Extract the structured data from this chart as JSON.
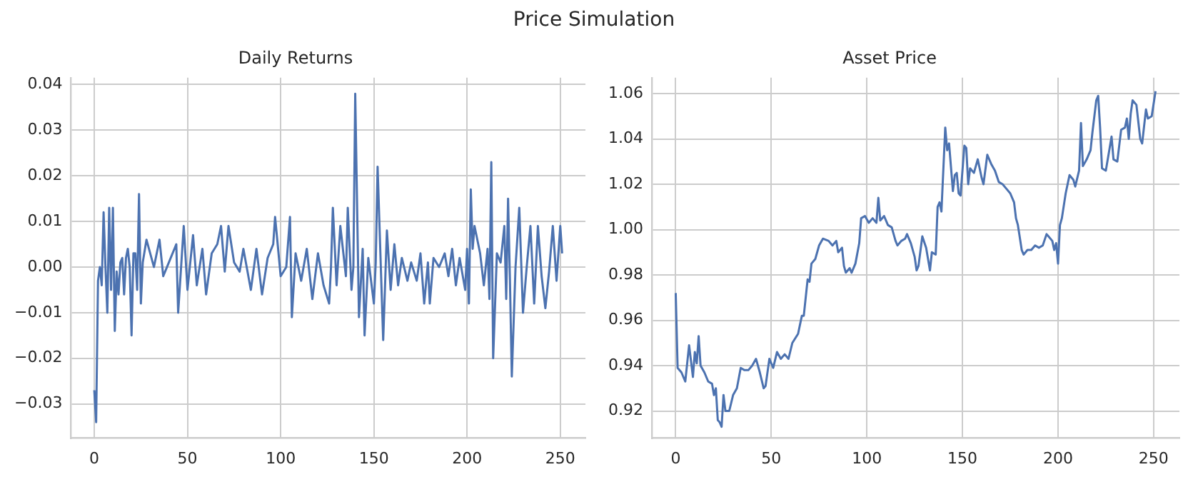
{
  "chart_data": [
    {
      "type": "line",
      "title": "Daily Returns",
      "annotations": [
        "Price Simulation"
      ],
      "color": "#4c72b0",
      "grid": true,
      "x": [
        0,
        1,
        2,
        3,
        4,
        5,
        6,
        7,
        8,
        9,
        10,
        11,
        12,
        13,
        14,
        15,
        16,
        17,
        18,
        19,
        20,
        21,
        22,
        23,
        24,
        25,
        26,
        28,
        32,
        35,
        37,
        40,
        44,
        45,
        48,
        50,
        53,
        55,
        58,
        60,
        63,
        66,
        68,
        70,
        72,
        75,
        78,
        80,
        84,
        87,
        90,
        93,
        96,
        97,
        100,
        103,
        105,
        106,
        108,
        111,
        114,
        117,
        120,
        123,
        126,
        127,
        128,
        130,
        132,
        135,
        136,
        138,
        139,
        140,
        142,
        144,
        145,
        147,
        150,
        151,
        152,
        155,
        157,
        159,
        161,
        163,
        165,
        168,
        170,
        173,
        175,
        177,
        179,
        180,
        182,
        185,
        188,
        190,
        192,
        194,
        196,
        199,
        200,
        201,
        202,
        203,
        204,
        207,
        209,
        211,
        212,
        213,
        214,
        216,
        218,
        220,
        221,
        222,
        223,
        224,
        226,
        228,
        230,
        232,
        234,
        236,
        238,
        240,
        242,
        244,
        246,
        248,
        250,
        251
      ],
      "values": [
        -0.027,
        -0.034,
        -0.003,
        0.0,
        -0.004,
        0.012,
        0.0,
        -0.01,
        0.013,
        -0.005,
        0.013,
        -0.014,
        -0.001,
        -0.006,
        0.001,
        0.002,
        -0.006,
        0.002,
        0.004,
        0.0,
        -0.015,
        0.003,
        0.003,
        -0.005,
        0.016,
        -0.008,
        0.001,
        0.006,
        0.0,
        0.006,
        -0.002,
        0.001,
        0.005,
        -0.01,
        0.009,
        -0.005,
        0.007,
        -0.004,
        0.004,
        -0.006,
        0.003,
        0.005,
        0.009,
        -0.001,
        0.009,
        0.001,
        -0.001,
        0.004,
        -0.005,
        0.004,
        -0.006,
        0.002,
        0.005,
        0.011,
        -0.002,
        0.0,
        0.011,
        -0.011,
        0.003,
        -0.003,
        0.004,
        -0.007,
        0.003,
        -0.004,
        -0.008,
        0.0,
        0.013,
        -0.004,
        0.009,
        -0.002,
        0.013,
        -0.005,
        0.0,
        0.038,
        -0.011,
        0.004,
        -0.015,
        0.002,
        -0.008,
        0.001,
        0.022,
        -0.016,
        0.008,
        -0.005,
        0.005,
        -0.004,
        0.002,
        -0.003,
        0.001,
        -0.003,
        0.003,
        -0.008,
        0.001,
        -0.008,
        0.002,
        0.0,
        0.003,
        -0.002,
        0.004,
        -0.004,
        0.002,
        -0.005,
        0.004,
        -0.008,
        0.017,
        0.004,
        0.009,
        0.003,
        -0.004,
        0.004,
        -0.007,
        0.023,
        -0.02,
        0.003,
        0.001,
        0.009,
        -0.007,
        0.015,
        -0.003,
        -0.024,
        0.0,
        0.013,
        -0.01,
        0.0,
        0.009,
        -0.008,
        0.009,
        -0.002,
        -0.009,
        -0.001,
        0.009,
        -0.003,
        0.009,
        0.003
      ],
      "xlim": [
        -12.5,
        263.5
      ],
      "xticks": [
        0,
        50,
        100,
        150,
        200,
        250
      ],
      "ylim": [
        -0.0375,
        0.0415
      ],
      "yticks": [
        {
          "value": -0.03,
          "label": "−0.03"
        },
        {
          "value": -0.02,
          "label": "−0.02"
        },
        {
          "value": -0.01,
          "label": "−0.01"
        },
        {
          "value": 0,
          "label": "0.00"
        },
        {
          "value": 0.01,
          "label": "0.01"
        },
        {
          "value": 0.02,
          "label": "0.02"
        },
        {
          "value": 0.03,
          "label": "0.03"
        },
        {
          "value": 0.04,
          "label": "0.04"
        }
      ]
    },
    {
      "type": "line",
      "title": "Asset Price",
      "color": "#4c72b0",
      "grid": true,
      "x": [
        0,
        1,
        3,
        5,
        7,
        8,
        9,
        10,
        11,
        12,
        13,
        15,
        17,
        19,
        20,
        21,
        22,
        23,
        24,
        25,
        26,
        28,
        30,
        32,
        34,
        36,
        38,
        40,
        42,
        44,
        46,
        47,
        49,
        51,
        53,
        55,
        57,
        59,
        61,
        64,
        66,
        67,
        69,
        70,
        71,
        73,
        75,
        77,
        80,
        82,
        84,
        85,
        87,
        88,
        89,
        91,
        92,
        94,
        96,
        97,
        99,
        101,
        103,
        105,
        106,
        107,
        109,
        111,
        113,
        115,
        116,
        118,
        120,
        121,
        123,
        125,
        126,
        127,
        129,
        131,
        133,
        134,
        136,
        137,
        138,
        139,
        141,
        142,
        143,
        145,
        146,
        147,
        148,
        149,
        151,
        152,
        153,
        154,
        156,
        158,
        160,
        161,
        163,
        165,
        167,
        169,
        171,
        173,
        175,
        177,
        178,
        179,
        181,
        182,
        184,
        186,
        188,
        190,
        192,
        194,
        195,
        197,
        198,
        199,
        200,
        201,
        202,
        204,
        206,
        208,
        209,
        211,
        212,
        213,
        215,
        217,
        218,
        220,
        221,
        222,
        223,
        225,
        227,
        228,
        229,
        231,
        233,
        235,
        236,
        237,
        238,
        239,
        241,
        243,
        244,
        246,
        247,
        249,
        251
      ],
      "values": [
        0.972,
        0.939,
        0.937,
        0.933,
        0.949,
        0.942,
        0.935,
        0.946,
        0.941,
        0.953,
        0.94,
        0.937,
        0.933,
        0.932,
        0.927,
        0.93,
        0.916,
        0.915,
        0.913,
        0.927,
        0.92,
        0.92,
        0.927,
        0.93,
        0.939,
        0.938,
        0.938,
        0.94,
        0.943,
        0.937,
        0.93,
        0.931,
        0.943,
        0.939,
        0.946,
        0.943,
        0.945,
        0.943,
        0.95,
        0.954,
        0.962,
        0.962,
        0.978,
        0.977,
        0.985,
        0.987,
        0.993,
        0.996,
        0.995,
        0.993,
        0.995,
        0.99,
        0.992,
        0.984,
        0.981,
        0.983,
        0.981,
        0.985,
        0.994,
        1.005,
        1.006,
        1.003,
        1.005,
        1.003,
        1.014,
        1.004,
        1.006,
        1.002,
        1.001,
        0.995,
        0.993,
        0.995,
        0.996,
        0.998,
        0.994,
        0.988,
        0.982,
        0.984,
        0.997,
        0.992,
        0.982,
        0.99,
        0.989,
        1.01,
        1.012,
        1.008,
        1.045,
        1.035,
        1.038,
        1.017,
        1.024,
        1.025,
        1.016,
        1.015,
        1.037,
        1.036,
        1.02,
        1.027,
        1.025,
        1.031,
        1.023,
        1.02,
        1.033,
        1.029,
        1.026,
        1.021,
        1.02,
        1.018,
        1.016,
        1.012,
        1.005,
        1.002,
        0.991,
        0.989,
        0.991,
        0.991,
        0.993,
        0.992,
        0.993,
        0.998,
        0.997,
        0.995,
        0.991,
        0.994,
        0.985,
        1.002,
        1.005,
        1.016,
        1.024,
        1.022,
        1.019,
        1.026,
        1.047,
        1.028,
        1.031,
        1.035,
        1.043,
        1.057,
        1.059,
        1.045,
        1.027,
        1.026,
        1.036,
        1.041,
        1.031,
        1.03,
        1.044,
        1.045,
        1.049,
        1.04,
        1.051,
        1.057,
        1.055,
        1.04,
        1.038,
        1.053,
        1.049,
        1.05,
        1.061
      ],
      "xlim": [
        -12.5,
        263.5
      ],
      "xticks": [
        0,
        50,
        100,
        150,
        200,
        250
      ],
      "ylim": [
        0.908,
        1.067
      ],
      "yticks": [
        {
          "value": 0.92,
          "label": "0.92"
        },
        {
          "value": 0.94,
          "label": "0.94"
        },
        {
          "value": 0.96,
          "label": "0.96"
        },
        {
          "value": 0.98,
          "label": "0.98"
        },
        {
          "value": 1.0,
          "label": "1.00"
        },
        {
          "value": 1.02,
          "label": "1.02"
        },
        {
          "value": 1.04,
          "label": "1.04"
        },
        {
          "value": 1.06,
          "label": "1.06"
        }
      ]
    }
  ]
}
